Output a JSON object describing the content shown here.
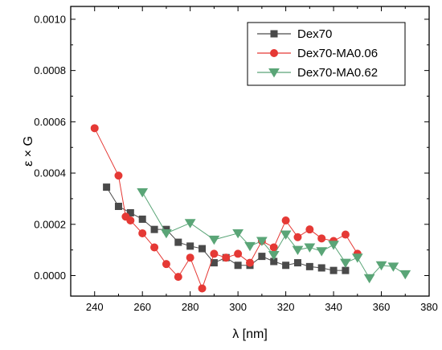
{
  "chart_data": {
    "type": "line",
    "xlabel": "λ [nm]",
    "ylabel": "ε × G",
    "xlim": [
      230,
      380
    ],
    "ylim": [
      -8e-05,
      0.00105
    ],
    "xticks": [
      240,
      260,
      280,
      300,
      320,
      340,
      360,
      380
    ],
    "xtick_labels": [
      "240",
      "260",
      "280",
      "300",
      "320",
      "340",
      "360",
      "380"
    ],
    "yticks": [
      0.0,
      0.0002,
      0.0004,
      0.0006,
      0.0008,
      0.001
    ],
    "ytick_labels": [
      "0.0000",
      "0.0002",
      "0.0004",
      "0.0006",
      "0.0008",
      "0.0010"
    ],
    "grid": false,
    "legend_position": "top-right",
    "series": [
      {
        "name": "Dex70",
        "color": "#4a4a4a",
        "marker": "square",
        "x": [
          245,
          250,
          255,
          260,
          265,
          270,
          275,
          280,
          285,
          290,
          295,
          300,
          305,
          310,
          315,
          320,
          325,
          330,
          335,
          340,
          345
        ],
        "y": [
          0.000345,
          0.00027,
          0.000245,
          0.00022,
          0.00018,
          0.00018,
          0.00013,
          0.000115,
          0.000105,
          5e-05,
          7e-05,
          4e-05,
          4e-05,
          7.5e-05,
          5.5e-05,
          4e-05,
          5e-05,
          3.5e-05,
          3e-05,
          2e-05,
          2e-05
        ]
      },
      {
        "name": "Dex70-MA0.06",
        "color": "#e53935",
        "marker": "circle",
        "x": [
          240,
          250,
          253,
          255,
          260,
          265,
          270,
          275,
          280,
          285,
          290,
          295,
          300,
          305,
          310,
          315,
          320,
          325,
          330,
          335,
          340,
          345,
          350
        ],
        "y": [
          0.000575,
          0.00039,
          0.00023,
          0.000215,
          0.000165,
          0.00011,
          4.5e-05,
          -5e-06,
          7e-05,
          -5e-05,
          8.5e-05,
          7e-05,
          8.5e-05,
          5e-05,
          0.000135,
          0.00011,
          0.000215,
          0.00015,
          0.00018,
          0.000145,
          0.000135,
          0.00016,
          8.5e-05
        ]
      },
      {
        "name": "Dex70-MA0.62",
        "color": "#5aa577",
        "marker": "triangle-down",
        "x": [
          260,
          270,
          280,
          290,
          300,
          305,
          310,
          315,
          320,
          325,
          330,
          335,
          340,
          345,
          350,
          355,
          360,
          365,
          370
        ],
        "y": [
          0.000325,
          0.000165,
          0.000205,
          0.00014,
          0.000165,
          0.000115,
          0.000135,
          8e-05,
          0.00016,
          0.0001,
          0.00011,
          9.5e-05,
          0.00012,
          5e-05,
          7e-05,
          -1e-05,
          4e-05,
          3.5e-05,
          5e-06
        ]
      }
    ]
  }
}
